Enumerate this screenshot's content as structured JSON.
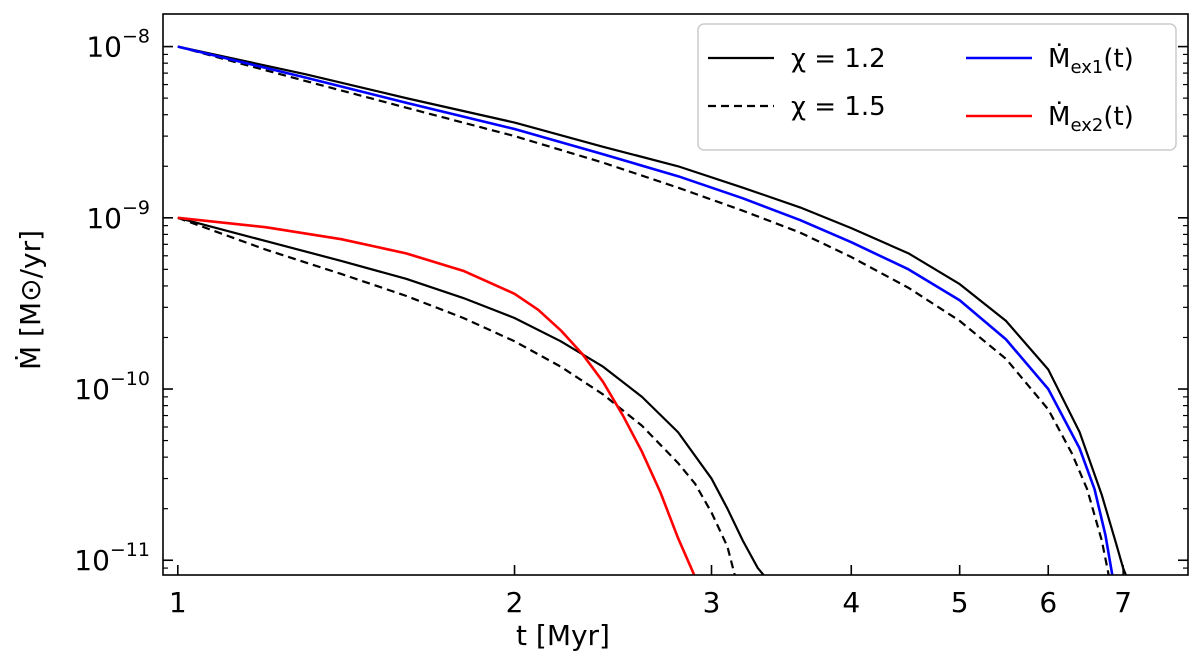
{
  "chart_data": {
    "type": "line",
    "xscale": "log",
    "yscale": "log",
    "xlabel": "t [Myr]",
    "ylabel": "Ṁ [M⊙/yr]",
    "xlim": [
      0.97,
      8.0
    ],
    "ylim": [
      8.2e-12,
      1.55e-08
    ],
    "x_ticks": [
      {
        "value": 1,
        "label": "1"
      },
      {
        "value": 2,
        "label": "2"
      },
      {
        "value": 3,
        "label": "3"
      },
      {
        "value": 4,
        "label": "4"
      },
      {
        "value": 5,
        "label": "5"
      },
      {
        "value": 6,
        "label": "6"
      },
      {
        "value": 7,
        "label": "7"
      }
    ],
    "y_ticks": [
      {
        "value": 1e-08,
        "base": "10",
        "exp": "−8"
      },
      {
        "value": 1e-09,
        "base": "10",
        "exp": "−9"
      },
      {
        "value": 1e-10,
        "base": "10",
        "exp": "−10"
      },
      {
        "value": 1e-11,
        "base": "10",
        "exp": "−11"
      }
    ],
    "grid": false,
    "legend_position": "top-right",
    "series": [
      {
        "legend": "chi12",
        "color": "#000000",
        "dash": "solid",
        "x": [
          1.0,
          1.3,
          1.6,
          2.0,
          2.4,
          2.8,
          3.2,
          3.6,
          4.0,
          4.5,
          5.0,
          5.5,
          6.0,
          6.4,
          6.7,
          6.9,
          7.0,
          7.05
        ],
        "y": [
          1e-08,
          6.9e-09,
          5e-09,
          3.6e-09,
          2.6e-09,
          2e-09,
          1.5e-09,
          1.15e-09,
          8.7e-10,
          6.2e-10,
          4.1e-10,
          2.5e-10,
          1.3e-10,
          5.6e-11,
          2.4e-11,
          1.25e-11,
          9e-12,
          8e-12
        ]
      },
      {
        "legend": "chi15",
        "color": "#000000",
        "dash": "dashed",
        "x": [
          1.0,
          1.3,
          1.6,
          2.0,
          2.4,
          2.8,
          3.2,
          3.6,
          4.0,
          4.5,
          5.0,
          5.5,
          6.0,
          6.3,
          6.5,
          6.7,
          6.8
        ],
        "y": [
          1e-08,
          6.3e-09,
          4.4e-09,
          3e-09,
          2.1e-09,
          1.5e-09,
          1.1e-09,
          8.2e-10,
          5.9e-10,
          3.9e-10,
          2.5e-10,
          1.5e-10,
          7.6e-11,
          4.2e-11,
          2.6e-11,
          1.3e-11,
          8e-12
        ]
      },
      {
        "legend": "mex1",
        "color": "#0000ff",
        "dash": "solid",
        "x": [
          1.0,
          1.3,
          1.6,
          2.0,
          2.4,
          2.8,
          3.2,
          3.6,
          4.0,
          4.5,
          5.0,
          5.5,
          6.0,
          6.4,
          6.6,
          6.75,
          6.85
        ],
        "y": [
          1e-08,
          6.6e-09,
          4.7e-09,
          3.3e-09,
          2.35e-09,
          1.75e-09,
          1.3e-09,
          9.7e-10,
          7.2e-10,
          5e-10,
          3.3e-10,
          1.95e-10,
          1e-10,
          4.5e-11,
          2.6e-11,
          1.4e-11,
          8e-12
        ]
      },
      {
        "legend": "chi12",
        "color": "#000000",
        "dash": "solid",
        "x": [
          1.0,
          1.2,
          1.4,
          1.6,
          1.8,
          2.0,
          2.2,
          2.4,
          2.6,
          2.8,
          3.0,
          3.1,
          3.2,
          3.3,
          3.35
        ],
        "y": [
          1e-09,
          7.3e-10,
          5.6e-10,
          4.4e-10,
          3.4e-10,
          2.6e-10,
          1.9e-10,
          1.35e-10,
          9e-11,
          5.6e-11,
          3e-11,
          2e-11,
          1.3e-11,
          9e-12,
          8e-12
        ]
      },
      {
        "legend": "chi15",
        "color": "#000000",
        "dash": "dashed",
        "x": [
          1.0,
          1.2,
          1.4,
          1.6,
          1.8,
          2.0,
          2.2,
          2.4,
          2.6,
          2.8,
          2.9,
          3.0,
          3.1,
          3.15
        ],
        "y": [
          1e-09,
          6.5e-10,
          4.7e-10,
          3.5e-10,
          2.6e-10,
          1.9e-10,
          1.35e-10,
          9.3e-11,
          6.1e-11,
          3.7e-11,
          2.8e-11,
          1.9e-11,
          1.2e-11,
          8e-12
        ]
      },
      {
        "legend": "mex2",
        "color": "#ff0000",
        "dash": "solid",
        "x": [
          1.0,
          1.2,
          1.4,
          1.6,
          1.8,
          2.0,
          2.1,
          2.2,
          2.3,
          2.4,
          2.5,
          2.6,
          2.7,
          2.8,
          2.9
        ],
        "y": [
          1e-09,
          8.8e-10,
          7.5e-10,
          6.2e-10,
          4.9e-10,
          3.6e-10,
          2.9e-10,
          2.2e-10,
          1.6e-10,
          1.1e-10,
          7e-11,
          4.3e-11,
          2.5e-11,
          1.35e-11,
          8e-12
        ]
      }
    ],
    "legend": [
      {
        "key": "chi12",
        "text": "χ = 1.2",
        "color": "#000000",
        "dash": "solid"
      },
      {
        "key": "chi15",
        "text": "χ = 1.5",
        "color": "#000000",
        "dash": "dashed"
      },
      {
        "key": "mex1",
        "text": "Ṁ",
        "sub": "ex1",
        "tail": "(t)",
        "color": "#0000ff",
        "dash": "solid"
      },
      {
        "key": "mex2",
        "text": "Ṁ",
        "sub": "ex2",
        "tail": "(t)",
        "color": "#ff0000",
        "dash": "solid"
      }
    ]
  }
}
